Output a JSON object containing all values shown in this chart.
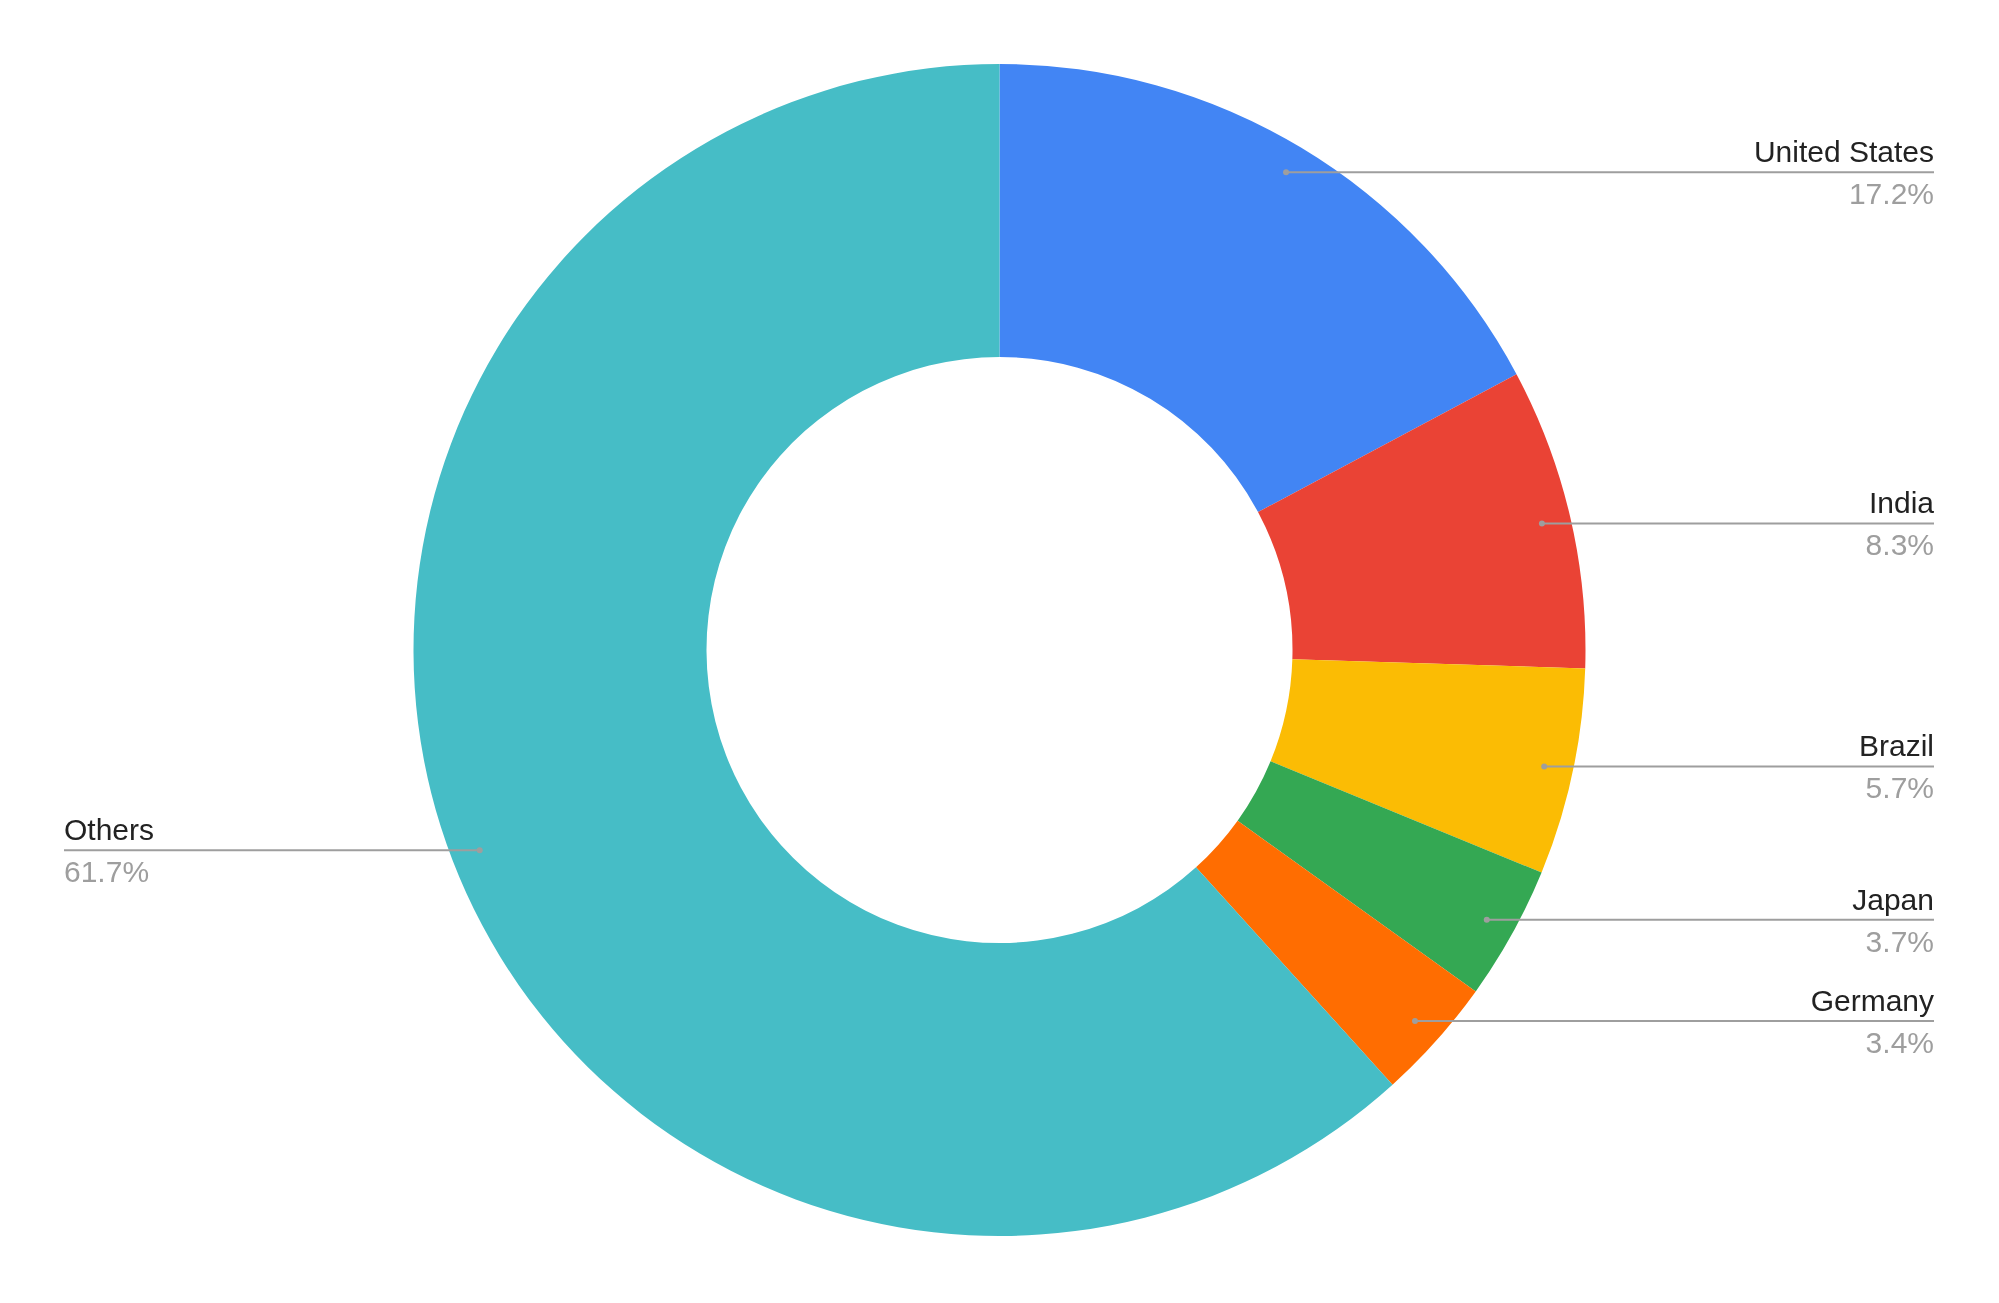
{
  "chart_data": {
    "type": "donut",
    "categories": [
      "United States",
      "India",
      "Brazil",
      "Japan",
      "Germany",
      "Others"
    ],
    "values": [
      17.2,
      8.3,
      5.7,
      3.7,
      3.4,
      61.7
    ],
    "colors": [
      "#4285f4",
      "#ea4335",
      "#fbbc04",
      "#34a853",
      "#ff6d01",
      "#46bdc6"
    ],
    "value_labels": [
      "17.2%",
      "8.3%",
      "5.7%",
      "3.7%",
      "3.4%",
      "61.7%"
    ]
  }
}
